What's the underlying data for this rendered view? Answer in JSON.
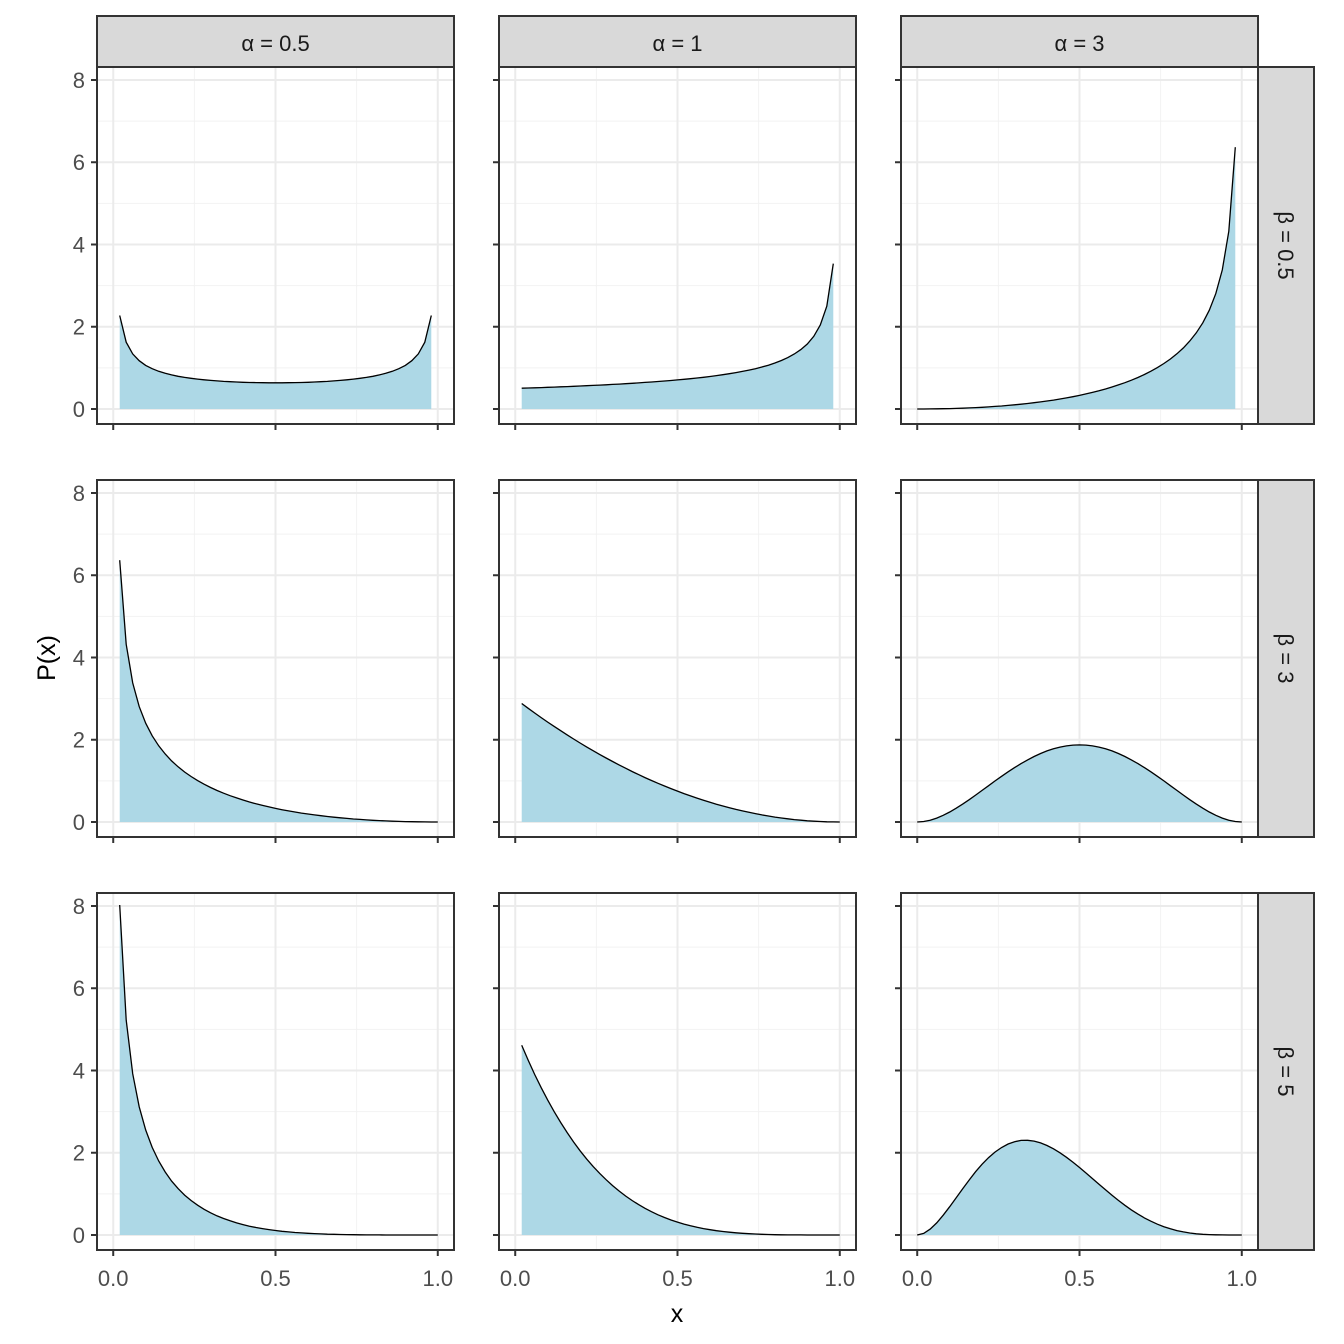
{
  "chart_data": {
    "type": "area",
    "title": "",
    "xlabel": "x",
    "ylabel": "P(x)",
    "xlim": [
      -0.05,
      1.05
    ],
    "ylim": [
      -0.365,
      8.316
    ],
    "x_ticks": [
      "0.0",
      "0.5",
      "1.0"
    ],
    "x_tick_values": [
      0,
      0.5,
      1
    ],
    "y_ticks": [
      "0",
      "2",
      "4",
      "6",
      "8"
    ],
    "y_tick_values": [
      0,
      2,
      4,
      6,
      8
    ],
    "grid": true,
    "x_sequence": {
      "from": 0,
      "to": 1,
      "by": 0.02,
      "note_drop_infinite": true
    },
    "fill_color": "#ADD8E6",
    "line_color": "#000000",
    "col_strips": [
      "α = 0.5",
      "α = 1",
      "α = 3"
    ],
    "row_strips": [
      "β = 0.5",
      "β = 3",
      "β = 5"
    ],
    "alphas": [
      0.5,
      1,
      3
    ],
    "betas": [
      0.5,
      3,
      5
    ],
    "series_description": "Beta(α, β) density P(x) for each facet"
  }
}
